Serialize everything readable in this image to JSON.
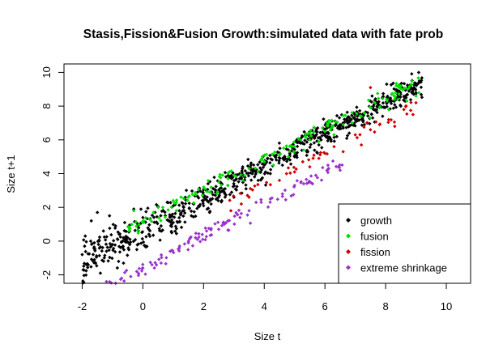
{
  "chart_data": {
    "type": "scatter",
    "title": "Stasis,Fission&Fusion Growth:simulated data with fate prob",
    "xlabel": "Size t",
    "ylabel": "Size t+1",
    "xlim": [
      -2.6,
      10.8
    ],
    "ylim": [
      -2.5,
      10.5
    ],
    "x_ticks": [
      -2,
      0,
      2,
      4,
      6,
      8,
      10
    ],
    "y_ticks": [
      -2,
      0,
      2,
      4,
      6,
      8,
      10
    ],
    "grid": false,
    "legend_position": "bottom-right",
    "series": [
      {
        "name": "growth",
        "color": "#000000",
        "trend": {
          "slope": 0.95,
          "intercept": 0.65,
          "spread": 0.65
        },
        "points": [
          [
            -2.0,
            -0.8
          ],
          [
            -1.9,
            0.3
          ],
          [
            -1.8,
            -1.4
          ],
          [
            -1.7,
            1.2
          ],
          [
            -1.6,
            -0.1
          ],
          [
            -1.5,
            1.7
          ],
          [
            -1.4,
            -1.9
          ],
          [
            -1.3,
            0.6
          ],
          [
            -1.2,
            -0.6
          ],
          [
            -1.1,
            1.5
          ],
          [
            -1.0,
            -0.2
          ],
          [
            -0.9,
            0.9
          ],
          [
            -0.8,
            -1.2
          ],
          [
            -0.6,
            1.1
          ],
          [
            -0.5,
            0.2
          ],
          [
            -0.3,
            1.9
          ],
          [
            -0.2,
            -0.5
          ],
          [
            0.0,
            1.4
          ],
          [
            0.2,
            0.4
          ],
          [
            0.4,
            1.7
          ],
          [
            0.6,
            0.9
          ],
          [
            0.8,
            2.3
          ],
          [
            1.0,
            1.1
          ],
          [
            1.2,
            1.8
          ],
          [
            1.4,
            2.6
          ],
          [
            1.6,
            1.5
          ],
          [
            1.8,
            2.9
          ],
          [
            2.0,
            2.1
          ],
          [
            2.2,
            1.7
          ],
          [
            2.4,
            3.0
          ],
          [
            2.6,
            2.4
          ],
          [
            2.8,
            3.3
          ],
          [
            3.0,
            2.6
          ],
          [
            3.2,
            3.7
          ],
          [
            3.4,
            3.1
          ],
          [
            3.6,
            4.2
          ],
          [
            3.8,
            3.6
          ],
          [
            4.0,
            4.6
          ],
          [
            4.2,
            4.0
          ],
          [
            4.4,
            5.1
          ],
          [
            4.6,
            4.5
          ],
          [
            4.8,
            5.4
          ],
          [
            5.0,
            5.0
          ],
          [
            5.2,
            5.8
          ],
          [
            5.4,
            5.3
          ],
          [
            5.6,
            6.2
          ],
          [
            5.8,
            5.7
          ],
          [
            6.0,
            6.6
          ],
          [
            6.2,
            6.0
          ],
          [
            6.5,
            6.9
          ],
          [
            6.8,
            6.4
          ],
          [
            7.0,
            7.2
          ],
          [
            7.3,
            6.9
          ],
          [
            7.6,
            7.8
          ],
          [
            7.9,
            7.4
          ],
          [
            8.2,
            8.3
          ],
          [
            8.5,
            8.0
          ],
          [
            8.8,
            9.0
          ],
          [
            9.0,
            8.8
          ],
          [
            9.1,
            9.4
          ]
        ]
      },
      {
        "name": "fusion",
        "color": "#00dd00",
        "trend": {
          "slope": 0.93,
          "intercept": 1.15,
          "spread": 0.4
        },
        "points": [
          [
            -0.3,
            1.8
          ],
          [
            0.5,
            2.0
          ],
          [
            1.0,
            2.4
          ],
          [
            1.5,
            2.6
          ],
          [
            2.0,
            3.2
          ],
          [
            2.2,
            2.9
          ],
          [
            2.5,
            3.5
          ],
          [
            2.8,
            3.3
          ],
          [
            3.0,
            3.9
          ],
          [
            3.3,
            3.6
          ],
          [
            3.5,
            4.3
          ],
          [
            3.8,
            4.1
          ],
          [
            4.0,
            4.7
          ],
          [
            4.3,
            4.5
          ],
          [
            4.5,
            5.1
          ],
          [
            4.8,
            5.0
          ],
          [
            5.0,
            5.6
          ],
          [
            5.3,
            5.4
          ],
          [
            5.5,
            6.0
          ],
          [
            5.8,
            5.9
          ],
          [
            6.0,
            6.5
          ],
          [
            6.3,
            6.3
          ],
          [
            6.6,
            6.9
          ],
          [
            6.9,
            7.0
          ],
          [
            7.2,
            7.4
          ],
          [
            7.5,
            7.3
          ],
          [
            7.8,
            7.9
          ],
          [
            8.1,
            7.8
          ],
          [
            8.4,
            8.4
          ],
          [
            8.7,
            8.3
          ],
          [
            9.0,
            8.6
          ],
          [
            9.1,
            8.8
          ]
        ]
      },
      {
        "name": "fission",
        "color": "#cc0000",
        "trend": {
          "slope": 0.92,
          "intercept": -0.25,
          "spread": 0.35
        },
        "points": [
          [
            2.9,
            1.8
          ],
          [
            3.5,
            2.6
          ],
          [
            4.5,
            3.6
          ],
          [
            5.0,
            4.1
          ],
          [
            5.5,
            4.4
          ],
          [
            6.0,
            5.2
          ],
          [
            6.3,
            5.6
          ],
          [
            6.6,
            5.3
          ],
          [
            7.0,
            6.3
          ],
          [
            7.2,
            5.7
          ],
          [
            7.5,
            6.6
          ],
          [
            7.5,
            9.1
          ],
          [
            7.8,
            6.9
          ],
          [
            8.1,
            7.2
          ],
          [
            8.3,
            6.8
          ],
          [
            8.6,
            7.8
          ],
          [
            8.9,
            7.5
          ],
          [
            9.0,
            8.2
          ]
        ]
      },
      {
        "name": "extreme shrinkage",
        "color": "#9932cc",
        "trend": {
          "slope": 0.95,
          "intercept": -1.55,
          "spread": 0.4
        },
        "points": [
          [
            -1.2,
            -2.4
          ],
          [
            -0.9,
            -2.5
          ],
          [
            -0.7,
            -2.2
          ],
          [
            -0.4,
            -2.1
          ],
          [
            -0.2,
            -1.8
          ],
          [
            0.0,
            -1.6
          ],
          [
            0.3,
            -1.4
          ],
          [
            0.6,
            -1.3
          ],
          [
            0.9,
            -0.6
          ],
          [
            1.2,
            -0.4
          ],
          [
            1.5,
            -0.1
          ],
          [
            1.8,
            0.1
          ],
          [
            2.1,
            0.6
          ],
          [
            2.5,
            0.7
          ],
          [
            2.8,
            1.2
          ],
          [
            3.2,
            1.4
          ],
          [
            3.5,
            1.8
          ],
          [
            3.9,
            2.3
          ],
          [
            4.2,
            2.5
          ],
          [
            4.6,
            2.8
          ],
          [
            5.0,
            3.3
          ],
          [
            5.3,
            3.4
          ],
          [
            5.7,
            3.9
          ],
          [
            6.1,
            4.5
          ],
          [
            6.5,
            4.2
          ]
        ]
      }
    ]
  }
}
